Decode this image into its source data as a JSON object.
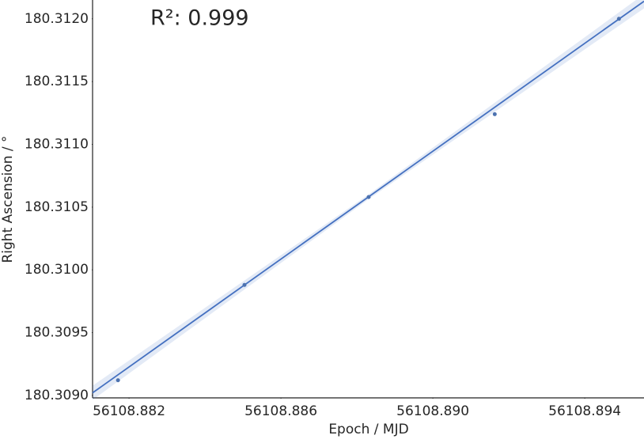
{
  "chart_data": {
    "type": "scatter",
    "annotation": "R²: 0.999",
    "x_label": "Epoch / MJD",
    "y_label": "Right Ascension / °",
    "x": [
      56108.88171,
      56108.88504,
      56108.88831,
      56108.89163,
      56108.8949
    ],
    "y": [
      180.30912,
      180.30988,
      180.31058,
      180.31124,
      180.312
    ],
    "color": "#4c72b0",
    "fit": {
      "x": [
        56108.88104,
        56108.89556
      ],
      "y": [
        180.30902,
        180.31214
      ],
      "color": "#4470c0"
    },
    "xlim": [
      56108.88104,
      56108.89556
    ],
    "ylim": [
      180.30898,
      180.31215
    ],
    "xticks": [
      56108.882,
      56108.886,
      {
        "value": 56108.89,
        "label": "56108.890"
      },
      56108.894
    ],
    "yticks": [
      {
        "value": 180.309,
        "label": "180.3090"
      },
      180.3095,
      {
        "value": 180.31,
        "label": "180.3100"
      },
      180.3105,
      {
        "value": 180.311,
        "label": "180.3110"
      },
      180.3115,
      {
        "value": 180.312,
        "label": "180.3120"
      }
    ],
    "grid": false
  }
}
